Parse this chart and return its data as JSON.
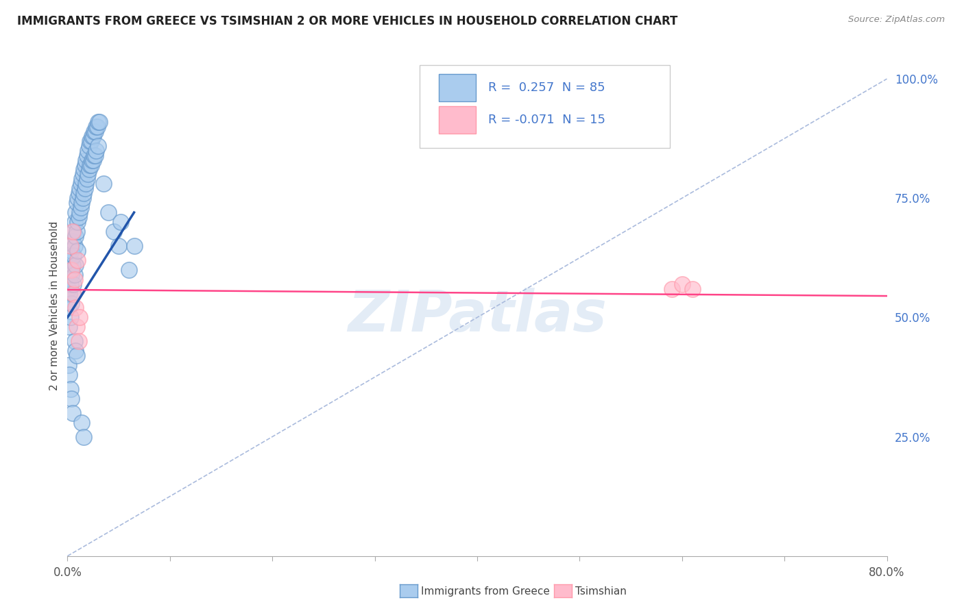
{
  "title": "IMMIGRANTS FROM GREECE VS TSIMSHIAN 2 OR MORE VEHICLES IN HOUSEHOLD CORRELATION CHART",
  "source_text": "Source: ZipAtlas.com",
  "ylabel": "2 or more Vehicles in Household",
  "xlim": [
    0.0,
    0.8
  ],
  "ylim": [
    0.0,
    1.05
  ],
  "xtick_labels_ends": [
    "0.0%",
    "80.0%"
  ],
  "xtick_values_ends": [
    0.0,
    0.8
  ],
  "ytick_labels_right": [
    "25.0%",
    "50.0%",
    "75.0%",
    "100.0%"
  ],
  "ytick_values_right": [
    0.25,
    0.5,
    0.75,
    1.0
  ],
  "blue_face": "#AACCEE",
  "blue_edge": "#6699CC",
  "pink_face": "#FFBBCC",
  "pink_edge": "#FF99AA",
  "blue_line_color": "#2255AA",
  "pink_line_color": "#FF4488",
  "diag_color": "#AABBDD",
  "right_tick_color": "#4477CC",
  "grid_color": "#DDDDDD",
  "watermark_color": "#CCDDF0",
  "blue_scatter_x": [
    0.001,
    0.001,
    0.002,
    0.002,
    0.002,
    0.003,
    0.003,
    0.003,
    0.004,
    0.004,
    0.004,
    0.005,
    0.005,
    0.005,
    0.006,
    0.006,
    0.006,
    0.007,
    0.007,
    0.007,
    0.008,
    0.008,
    0.008,
    0.009,
    0.009,
    0.01,
    0.01,
    0.01,
    0.011,
    0.011,
    0.012,
    0.012,
    0.013,
    0.013,
    0.014,
    0.014,
    0.015,
    0.015,
    0.016,
    0.016,
    0.017,
    0.017,
    0.018,
    0.018,
    0.019,
    0.019,
    0.02,
    0.02,
    0.021,
    0.021,
    0.022,
    0.022,
    0.023,
    0.023,
    0.024,
    0.024,
    0.025,
    0.025,
    0.026,
    0.026,
    0.027,
    0.027,
    0.028,
    0.028,
    0.029,
    0.03,
    0.03,
    0.031,
    0.035,
    0.04,
    0.045,
    0.05,
    0.052,
    0.06,
    0.065,
    0.001,
    0.002,
    0.003,
    0.004,
    0.005,
    0.007,
    0.008,
    0.009,
    0.014,
    0.016
  ],
  "blue_scatter_y": [
    0.56,
    0.52,
    0.6,
    0.55,
    0.48,
    0.62,
    0.57,
    0.5,
    0.64,
    0.59,
    0.53,
    0.66,
    0.61,
    0.55,
    0.68,
    0.63,
    0.57,
    0.7,
    0.65,
    0.59,
    0.72,
    0.67,
    0.61,
    0.74,
    0.68,
    0.75,
    0.7,
    0.64,
    0.76,
    0.71,
    0.77,
    0.72,
    0.78,
    0.73,
    0.79,
    0.74,
    0.8,
    0.75,
    0.81,
    0.76,
    0.82,
    0.77,
    0.83,
    0.78,
    0.84,
    0.79,
    0.85,
    0.8,
    0.86,
    0.81,
    0.87,
    0.82,
    0.87,
    0.82,
    0.88,
    0.83,
    0.88,
    0.83,
    0.89,
    0.84,
    0.89,
    0.84,
    0.9,
    0.85,
    0.9,
    0.91,
    0.86,
    0.91,
    0.78,
    0.72,
    0.68,
    0.65,
    0.7,
    0.6,
    0.65,
    0.4,
    0.38,
    0.35,
    0.33,
    0.3,
    0.45,
    0.43,
    0.42,
    0.28,
    0.25
  ],
  "pink_scatter_x": [
    0.003,
    0.004,
    0.005,
    0.006,
    0.007,
    0.008,
    0.009,
    0.01,
    0.011,
    0.012,
    0.59,
    0.6,
    0.61
  ],
  "pink_scatter_y": [
    0.65,
    0.6,
    0.68,
    0.55,
    0.58,
    0.52,
    0.48,
    0.62,
    0.45,
    0.5,
    0.56,
    0.57,
    0.56
  ],
  "blue_line_x0": 0.0,
  "blue_line_x1": 0.065,
  "blue_line_y0": 0.5,
  "blue_line_y1": 0.72,
  "pink_line_x0": 0.0,
  "pink_line_x1": 0.8,
  "pink_line_y0": 0.558,
  "pink_line_y1": 0.545
}
